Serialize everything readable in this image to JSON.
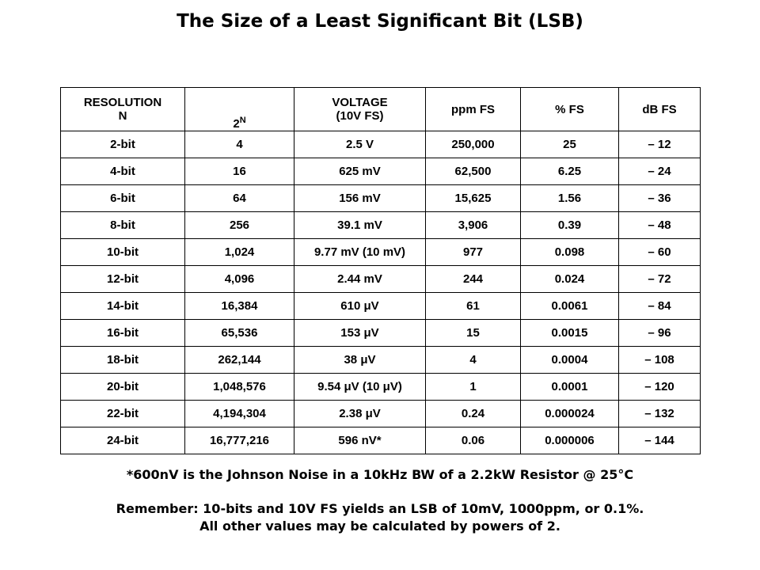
{
  "title": "The Size of a Least Significant Bit (LSB)",
  "table": {
    "header": [
      [
        "RESOLUTION",
        "N"
      ],
      {
        "base": "2",
        "sup": "N"
      },
      [
        "VOLTAGE",
        "(10V FS)"
      ],
      [
        "ppm FS"
      ],
      [
        "% FS"
      ],
      [
        "dB FS"
      ]
    ],
    "rows": [
      [
        "2-bit",
        "4",
        "2.5 V",
        "250,000",
        "25",
        "– 12"
      ],
      [
        "4-bit",
        "16",
        "625 mV",
        "62,500",
        "6.25",
        "– 24"
      ],
      [
        "6-bit",
        "64",
        "156 mV",
        "15,625",
        "1.56",
        "– 36"
      ],
      [
        "8-bit",
        "256",
        "39.1 mV",
        "3,906",
        "0.39",
        "– 48"
      ],
      [
        "10-bit",
        "1,024",
        "9.77 mV (10 mV)",
        "977",
        "0.098",
        "– 60"
      ],
      [
        "12-bit",
        "4,096",
        "2.44 mV",
        "244",
        "0.024",
        "– 72"
      ],
      [
        "14-bit",
        "16,384",
        "610 μV",
        "61",
        "0.0061",
        "– 84"
      ],
      [
        "16-bit",
        "65,536",
        "153 μV",
        "15",
        "0.0015",
        "– 96"
      ],
      [
        "18-bit",
        "262,144",
        "38 μV",
        "4",
        "0.0004",
        "– 108"
      ],
      [
        "20-bit",
        "1,048,576",
        "9.54 μV (10 μV)",
        "1",
        "0.0001",
        "– 120"
      ],
      [
        "22-bit",
        "4,194,304",
        "2.38 μV",
        "0.24",
        "0.000024",
        "– 132"
      ],
      [
        "24-bit",
        "16,777,216",
        "596 nV*",
        "0.06",
        "0.000006",
        "– 144"
      ]
    ]
  },
  "footnote": "*600nV is the Johnson Noise in a 10kHz BW of a 2.2kW Resistor @ 25°C",
  "remember": [
    "Remember: 10-bits and 10V FS yields an LSB of 10mV, 1000ppm, or 0.1%.",
    "All other values may be calculated by powers of 2."
  ]
}
